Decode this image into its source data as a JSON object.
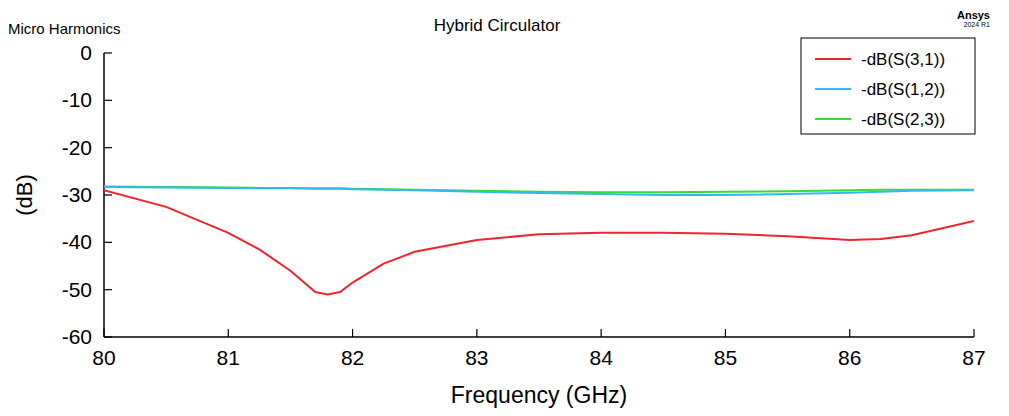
{
  "chart_data": {
    "type": "line",
    "title": "Hybrid Circulator",
    "annotations": [
      "Micro Harmonics",
      "Ansys",
      "2024 R1"
    ],
    "x_label": "Frequency (GHz)",
    "y_label": "(dB)",
    "x": [
      80,
      80.5,
      81,
      81.25,
      81.5,
      81.7,
      81.8,
      81.9,
      82,
      82.25,
      82.5,
      83,
      83.5,
      84,
      84.5,
      85,
      85.5,
      86,
      86.25,
      86.5,
      87
    ],
    "series": [
      {
        "name": "-dB(S(3,1))",
        "color": "#f0242a",
        "values": [
          -29,
          -32.5,
          -38,
          -41.5,
          -46,
          -50.5,
          -51,
          -50.5,
          -48.5,
          -44.5,
          -42,
          -39.5,
          -38.3,
          -38,
          -38,
          -38.2,
          -38.7,
          -39.5,
          -39.3,
          -38.5,
          -35.5
        ]
      },
      {
        "name": "-dB(S(1,2))",
        "color": "#33b8f2",
        "values": [
          -28.3,
          -28.4,
          -28.5,
          -28.6,
          -28.6,
          -28.7,
          -28.7,
          -28.7,
          -28.8,
          -28.9,
          -29.0,
          -29.3,
          -29.6,
          -29.8,
          -30,
          -30,
          -29.8,
          -29.5,
          -29.3,
          -29.1,
          -29
        ]
      },
      {
        "name": "-dB(S(2,3))",
        "color": "#33dd33",
        "values": [
          -28.2,
          -28.3,
          -28.4,
          -28.5,
          -28.5,
          -28.6,
          -28.6,
          -28.6,
          -28.7,
          -28.8,
          -28.9,
          -29.1,
          -29.3,
          -29.4,
          -29.4,
          -29.3,
          -29.2,
          -29.0,
          -28.9,
          -28.9,
          -28.9
        ]
      }
    ],
    "xlim": [
      80,
      87
    ],
    "ylim": [
      -60,
      0
    ],
    "xticks": [
      80,
      81,
      82,
      83,
      84,
      85,
      86,
      87
    ],
    "yticks": [
      0,
      -10,
      -20,
      -30,
      -40,
      -50,
      -60
    ],
    "grid": false,
    "legend": "top-right",
    "line_style": "solid"
  }
}
